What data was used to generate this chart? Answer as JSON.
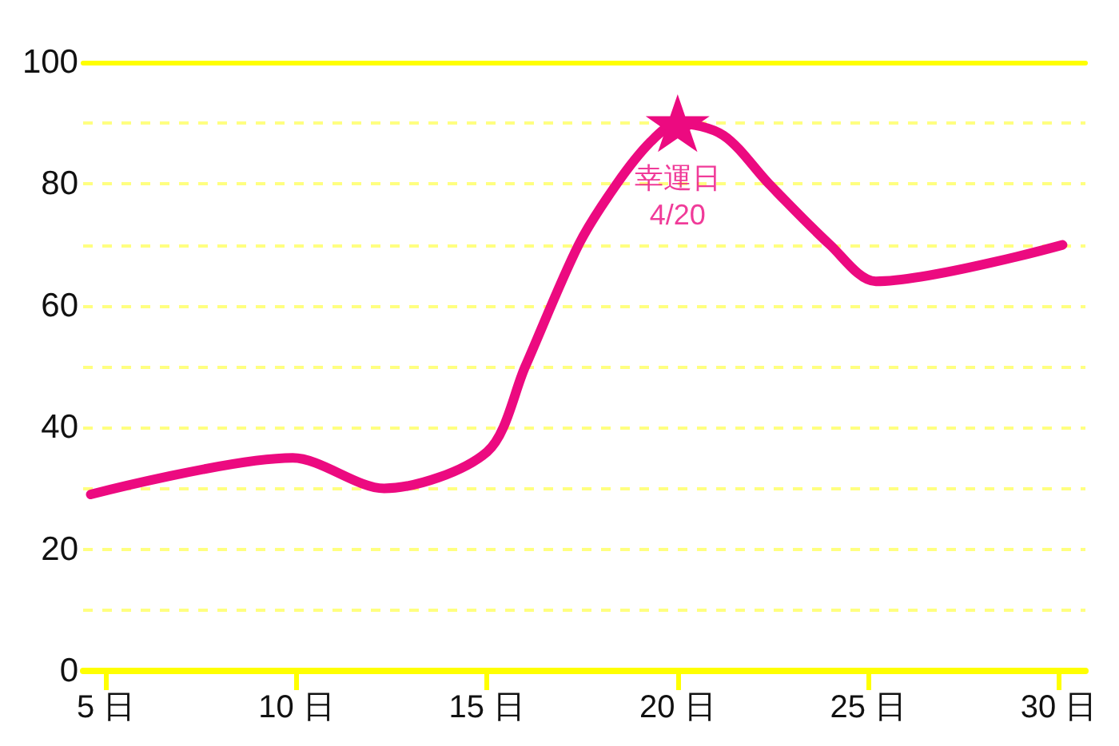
{
  "chart_data": {
    "type": "line",
    "x": [
      4.6,
      9.9,
      12.3,
      15,
      16,
      17.4,
      18.4,
      19.3,
      20,
      21.2,
      22.4,
      24,
      25.2,
      30.1
    ],
    "series": [
      {
        "color": "#ec0a80",
        "values": [
          29,
          35,
          30,
          36,
          50,
          70,
          80,
          87,
          90,
          88,
          80,
          70,
          64,
          70
        ],
        "marker": "none",
        "line_style": "solid"
      },
      {
        "type": "scatter",
        "color": "#ec0a80",
        "x": [
          20
        ],
        "values": [
          90
        ],
        "marker": "star"
      }
    ],
    "annotations": [
      {
        "text": "幸運日\n4/20",
        "x": 20,
        "y": 90
      }
    ],
    "xlim": [
      4.4,
      30.7
    ],
    "xticks": [
      {
        "value": 5,
        "label": "5 日"
      },
      {
        "value": 10,
        "label": "10 日"
      },
      {
        "value": 15,
        "label": "15 日"
      },
      {
        "value": 20,
        "label": "20 日"
      },
      {
        "value": 25,
        "label": "25 日"
      },
      {
        "value": 30,
        "label": "30 日"
      }
    ],
    "ylim": [
      0,
      100
    ],
    "yticks": [
      0,
      {
        "value": 10,
        "label": null
      },
      20,
      {
        "value": 30,
        "label": null
      },
      40,
      {
        "value": 50,
        "label": null
      },
      60,
      {
        "value": 70,
        "label": null
      },
      80,
      {
        "value": 90,
        "label": null
      },
      100
    ],
    "grid": "y"
  }
}
